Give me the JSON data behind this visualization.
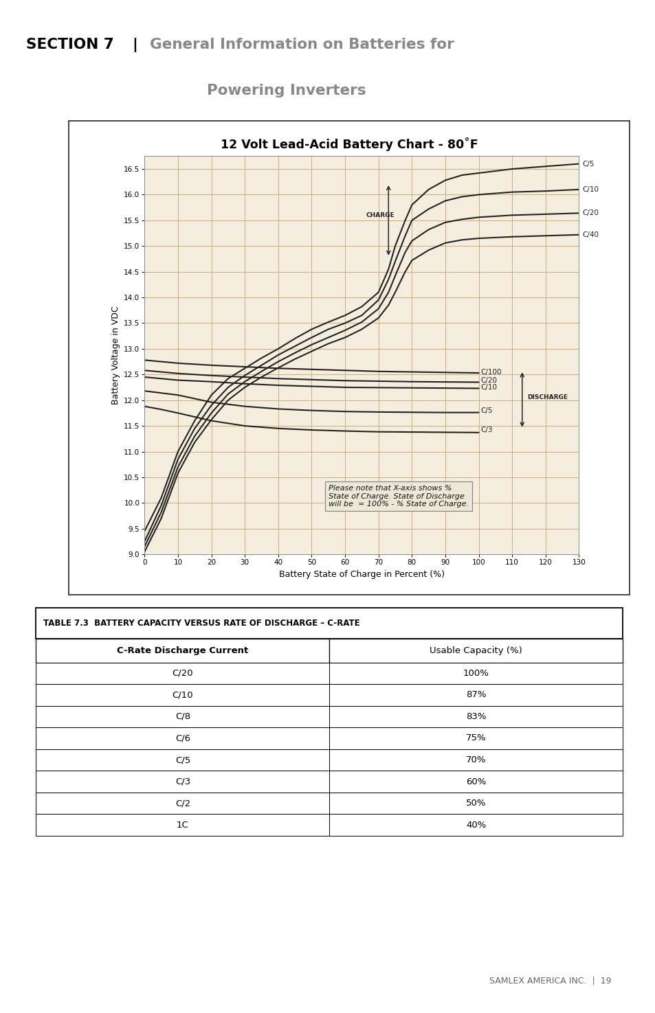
{
  "chart_title": "12 Volt Lead-Acid Battery Chart - 80˚F",
  "section_bold": "SECTION 7 |",
  "xlabel": "Battery State of Charge in Percent (%)",
  "ylabel": "Battery Voltage in VDC",
  "xlim": [
    0,
    130
  ],
  "ylim": [
    9.0,
    16.75
  ],
  "xticks": [
    0,
    10,
    20,
    30,
    40,
    50,
    60,
    70,
    80,
    90,
    100,
    110,
    120,
    130
  ],
  "yticks": [
    9.0,
    9.5,
    10.0,
    10.5,
    11.0,
    11.5,
    12.0,
    12.5,
    13.0,
    13.5,
    14.0,
    14.5,
    15.0,
    15.5,
    16.0,
    16.5
  ],
  "grid_color": "#c8a870",
  "bg_color": "#f5eedf",
  "line_color": "#222222",
  "charge_C5": [
    [
      0,
      9.45
    ],
    [
      5,
      10.1
    ],
    [
      10,
      11.0
    ],
    [
      15,
      11.6
    ],
    [
      20,
      12.1
    ],
    [
      25,
      12.42
    ],
    [
      30,
      12.62
    ],
    [
      35,
      12.82
    ],
    [
      40,
      13.0
    ],
    [
      45,
      13.2
    ],
    [
      50,
      13.38
    ],
    [
      55,
      13.52
    ],
    [
      60,
      13.65
    ],
    [
      65,
      13.82
    ],
    [
      70,
      14.1
    ],
    [
      73,
      14.55
    ],
    [
      75,
      15.0
    ],
    [
      78,
      15.5
    ],
    [
      80,
      15.8
    ],
    [
      85,
      16.1
    ],
    [
      90,
      16.28
    ],
    [
      95,
      16.38
    ],
    [
      100,
      16.42
    ],
    [
      110,
      16.5
    ],
    [
      120,
      16.55
    ],
    [
      130,
      16.6
    ]
  ],
  "charge_C10": [
    [
      0,
      9.25
    ],
    [
      5,
      9.95
    ],
    [
      10,
      10.85
    ],
    [
      15,
      11.45
    ],
    [
      20,
      11.9
    ],
    [
      25,
      12.25
    ],
    [
      30,
      12.48
    ],
    [
      35,
      12.68
    ],
    [
      40,
      12.88
    ],
    [
      45,
      13.05
    ],
    [
      50,
      13.22
    ],
    [
      55,
      13.38
    ],
    [
      60,
      13.5
    ],
    [
      65,
      13.65
    ],
    [
      70,
      13.95
    ],
    [
      73,
      14.35
    ],
    [
      75,
      14.7
    ],
    [
      78,
      15.2
    ],
    [
      80,
      15.5
    ],
    [
      85,
      15.72
    ],
    [
      90,
      15.88
    ],
    [
      95,
      15.96
    ],
    [
      100,
      16.0
    ],
    [
      110,
      16.05
    ],
    [
      120,
      16.07
    ],
    [
      130,
      16.1
    ]
  ],
  "charge_C20": [
    [
      0,
      9.15
    ],
    [
      5,
      9.82
    ],
    [
      10,
      10.7
    ],
    [
      15,
      11.3
    ],
    [
      20,
      11.75
    ],
    [
      25,
      12.12
    ],
    [
      30,
      12.36
    ],
    [
      35,
      12.56
    ],
    [
      40,
      12.75
    ],
    [
      45,
      12.92
    ],
    [
      50,
      13.08
    ],
    [
      55,
      13.22
    ],
    [
      60,
      13.36
    ],
    [
      65,
      13.52
    ],
    [
      70,
      13.78
    ],
    [
      73,
      14.1
    ],
    [
      75,
      14.42
    ],
    [
      78,
      14.88
    ],
    [
      80,
      15.1
    ],
    [
      85,
      15.32
    ],
    [
      90,
      15.46
    ],
    [
      95,
      15.52
    ],
    [
      100,
      15.56
    ],
    [
      110,
      15.6
    ],
    [
      120,
      15.62
    ],
    [
      130,
      15.64
    ]
  ],
  "charge_C40": [
    [
      0,
      9.05
    ],
    [
      5,
      9.7
    ],
    [
      10,
      10.58
    ],
    [
      15,
      11.18
    ],
    [
      20,
      11.62
    ],
    [
      25,
      12.0
    ],
    [
      30,
      12.25
    ],
    [
      35,
      12.45
    ],
    [
      40,
      12.63
    ],
    [
      45,
      12.8
    ],
    [
      50,
      12.95
    ],
    [
      55,
      13.1
    ],
    [
      60,
      13.22
    ],
    [
      65,
      13.38
    ],
    [
      70,
      13.6
    ],
    [
      73,
      13.85
    ],
    [
      75,
      14.1
    ],
    [
      78,
      14.5
    ],
    [
      80,
      14.72
    ],
    [
      85,
      14.92
    ],
    [
      90,
      15.06
    ],
    [
      95,
      15.12
    ],
    [
      100,
      15.15
    ],
    [
      110,
      15.18
    ],
    [
      120,
      15.2
    ],
    [
      130,
      15.22
    ]
  ],
  "discharge_C100": [
    [
      0,
      12.78
    ],
    [
      5,
      12.75
    ],
    [
      10,
      12.72
    ],
    [
      20,
      12.68
    ],
    [
      30,
      12.65
    ],
    [
      40,
      12.62
    ],
    [
      50,
      12.6
    ],
    [
      60,
      12.58
    ],
    [
      70,
      12.56
    ],
    [
      80,
      12.55
    ],
    [
      90,
      12.54
    ],
    [
      100,
      12.53
    ]
  ],
  "discharge_C20": [
    [
      0,
      12.58
    ],
    [
      5,
      12.55
    ],
    [
      10,
      12.52
    ],
    [
      20,
      12.48
    ],
    [
      30,
      12.45
    ],
    [
      40,
      12.42
    ],
    [
      50,
      12.4
    ],
    [
      60,
      12.38
    ],
    [
      70,
      12.37
    ],
    [
      80,
      12.36
    ],
    [
      90,
      12.355
    ],
    [
      100,
      12.35
    ]
  ],
  "discharge_C10": [
    [
      0,
      12.45
    ],
    [
      5,
      12.42
    ],
    [
      10,
      12.39
    ],
    [
      20,
      12.36
    ],
    [
      30,
      12.32
    ],
    [
      40,
      12.29
    ],
    [
      50,
      12.27
    ],
    [
      60,
      12.25
    ],
    [
      70,
      12.245
    ],
    [
      80,
      12.24
    ],
    [
      90,
      12.235
    ],
    [
      100,
      12.23
    ]
  ],
  "discharge_C5": [
    [
      0,
      12.18
    ],
    [
      5,
      12.14
    ],
    [
      10,
      12.1
    ],
    [
      20,
      11.96
    ],
    [
      30,
      11.88
    ],
    [
      40,
      11.83
    ],
    [
      50,
      11.8
    ],
    [
      60,
      11.78
    ],
    [
      70,
      11.77
    ],
    [
      80,
      11.765
    ],
    [
      90,
      11.76
    ],
    [
      100,
      11.76
    ]
  ],
  "discharge_C3": [
    [
      0,
      11.88
    ],
    [
      5,
      11.82
    ],
    [
      10,
      11.75
    ],
    [
      20,
      11.6
    ],
    [
      30,
      11.5
    ],
    [
      40,
      11.45
    ],
    [
      50,
      11.42
    ],
    [
      60,
      11.4
    ],
    [
      70,
      11.385
    ],
    [
      80,
      11.38
    ],
    [
      90,
      11.375
    ],
    [
      100,
      11.37
    ]
  ],
  "note_text": "Please note that X-axis shows %\nState of Charge. State of Discharge\nwill be  = 100% - % State of Charge.",
  "table_title": "TABLE 7.3  BATTERY CAPACITY VERSUS RATE OF DISCHARGE – C-RATE",
  "table_col1": "C-Rate Discharge Current",
  "table_col2": "Usable Capacity (%)",
  "table_rows": [
    [
      "C/20",
      "100%"
    ],
    [
      "C/10",
      "87%"
    ],
    [
      "C/8",
      "83%"
    ],
    [
      "C/6",
      "75%"
    ],
    [
      "C/5",
      "70%"
    ],
    [
      "C/3",
      "60%"
    ],
    [
      "C/2",
      "50%"
    ],
    [
      "1C",
      "40%"
    ]
  ],
  "footer": "SAMLEX AMERICA INC.  |  19"
}
